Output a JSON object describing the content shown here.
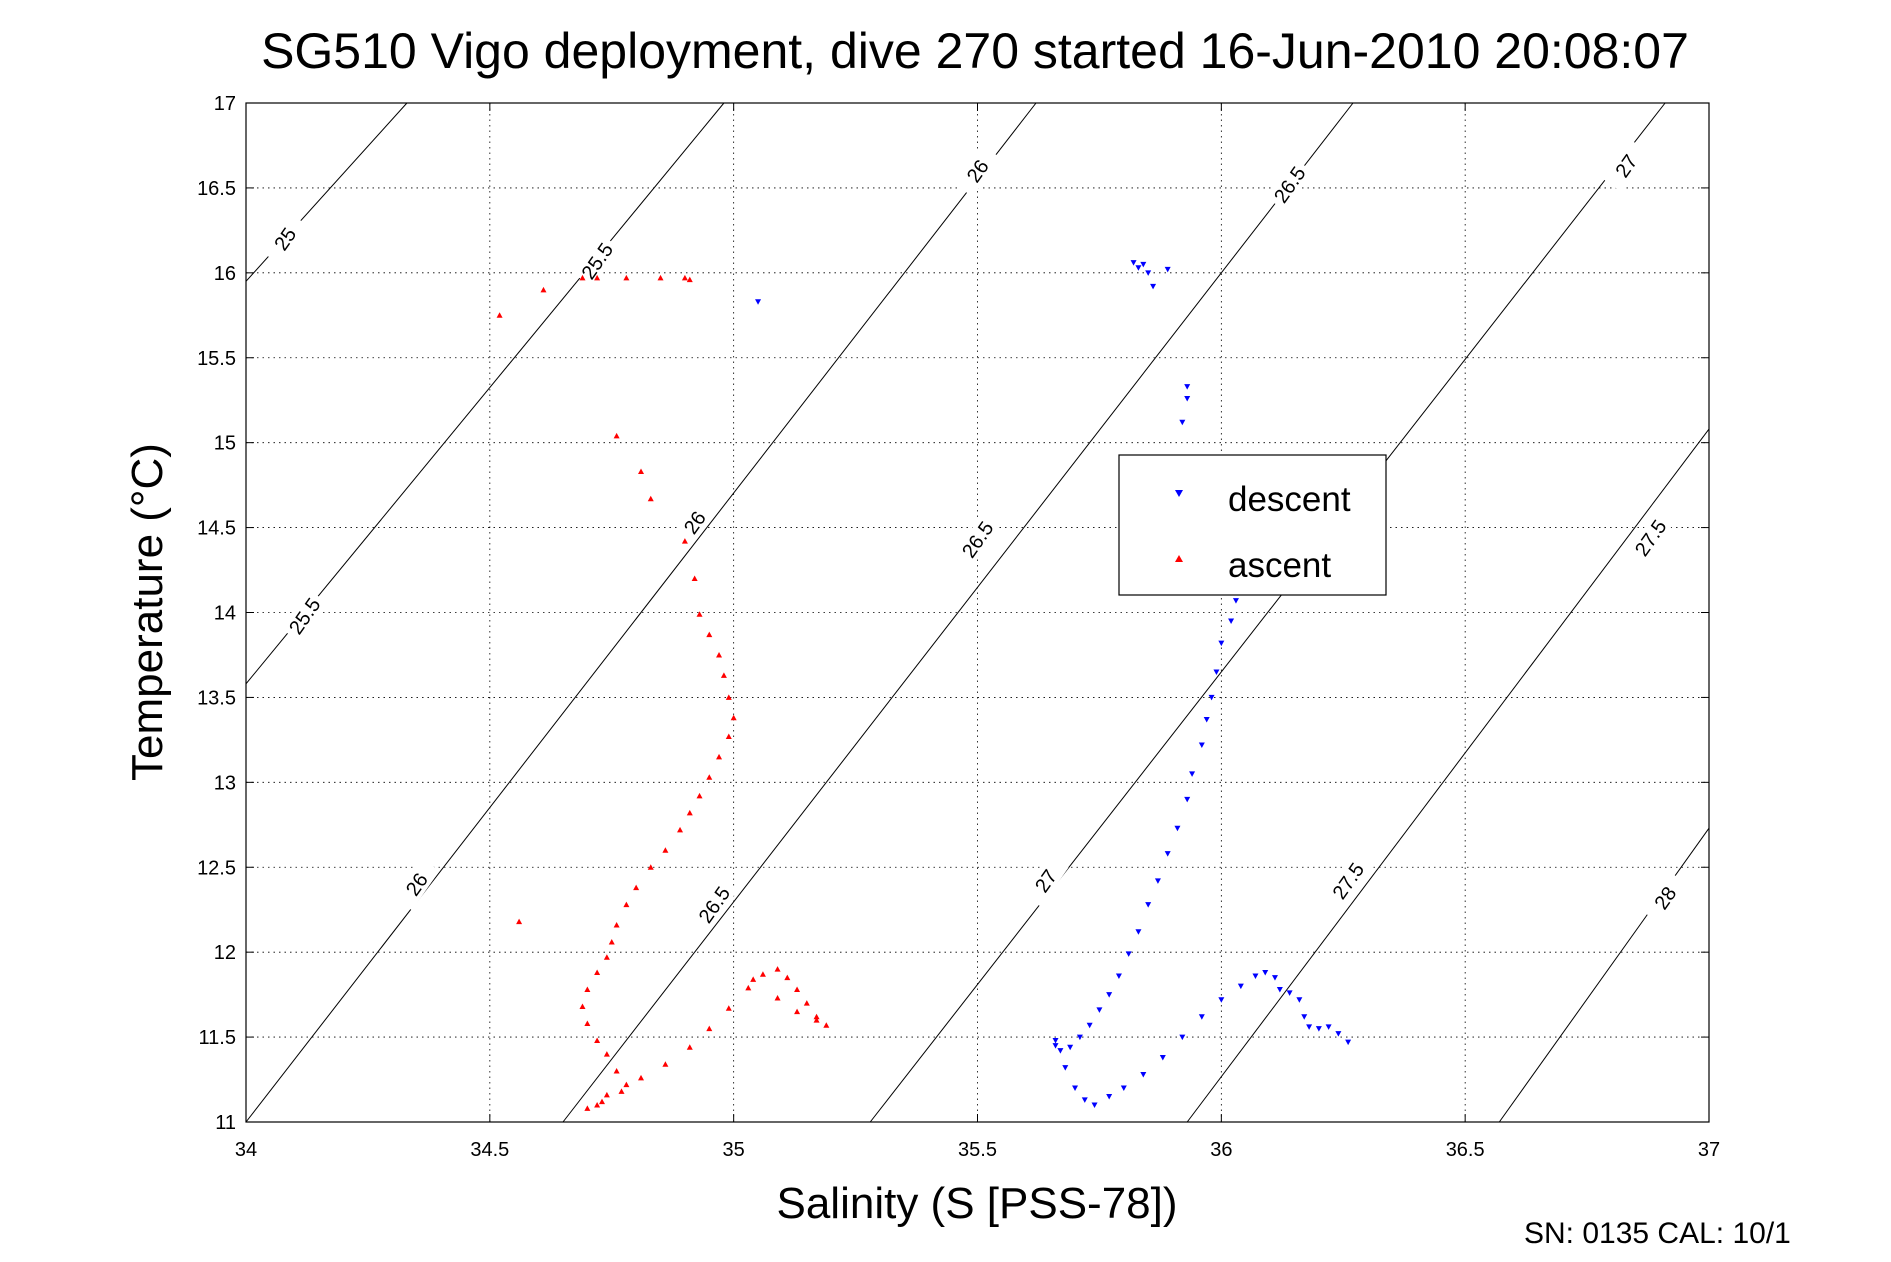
{
  "chart_data": {
    "type": "scatter",
    "title": "SG510 Vigo deployment, dive 270 started 16-Jun-2010 20:08:07",
    "xlabel": "Salinity (S [PSS-78])",
    "ylabel": "Temperature (°C)",
    "xlim": [
      34,
      37
    ],
    "ylim": [
      11,
      17
    ],
    "x_ticks": [
      "34",
      "34.5",
      "35",
      "35.5",
      "36",
      "36.5",
      "37"
    ],
    "y_ticks": [
      "11",
      "11.5",
      "12",
      "12.5",
      "13",
      "13.5",
      "14",
      "14.5",
      "15",
      "15.5",
      "16",
      "16.5",
      "17"
    ],
    "grid": true,
    "legend_position": "upper-right-center",
    "footer": "SN: 0135  CAL: 10/1",
    "colors": {
      "descent": "#0000ff",
      "ascent": "#ff0000",
      "contours": "#000000"
    },
    "contours": [
      {
        "label": "25",
        "points": [
          [
            34.0,
            15.95
          ],
          [
            34.33,
            17.0
          ]
        ]
      },
      {
        "label": "25.5",
        "points": [
          [
            34.0,
            13.58
          ],
          [
            34.98,
            17.0
          ]
        ]
      },
      {
        "label": "26",
        "points": [
          [
            34.0,
            11.0
          ],
          [
            35.62,
            17.0
          ]
        ]
      },
      {
        "label": "26.5",
        "points": [
          [
            34.65,
            11.0
          ],
          [
            36.27,
            17.0
          ]
        ]
      },
      {
        "label": "27",
        "points": [
          [
            35.28,
            11.0
          ],
          [
            36.91,
            17.0
          ]
        ]
      },
      {
        "label": "27.5",
        "points": [
          [
            35.93,
            11.0
          ],
          [
            37.0,
            15.08
          ]
        ]
      },
      {
        "label": "28",
        "points": [
          [
            36.57,
            11.0
          ],
          [
            37.0,
            12.73
          ]
        ]
      }
    ],
    "contour_labels": [
      {
        "text": "25",
        "x": 34.08,
        "y": 16.2
      },
      {
        "text": "25.5",
        "x": 34.72,
        "y": 16.07
      },
      {
        "text": "26",
        "x": 35.5,
        "y": 16.6
      },
      {
        "text": "26.5",
        "x": 36.14,
        "y": 16.52
      },
      {
        "text": "27",
        "x": 36.83,
        "y": 16.63
      },
      {
        "text": "25.5",
        "x": 34.12,
        "y": 13.98
      },
      {
        "text": "26",
        "x": 34.92,
        "y": 14.53
      },
      {
        "text": "26.5",
        "x": 35.5,
        "y": 14.43
      },
      {
        "text": "27.5",
        "x": 36.88,
        "y": 14.44
      },
      {
        "text": "26",
        "x": 34.35,
        "y": 12.4
      },
      {
        "text": "26.5",
        "x": 34.96,
        "y": 12.28
      },
      {
        "text": "27",
        "x": 35.64,
        "y": 12.42
      },
      {
        "text": "27.5",
        "x": 36.26,
        "y": 12.42
      },
      {
        "text": "28",
        "x": 36.91,
        "y": 12.32
      }
    ],
    "series": [
      {
        "name": "descent",
        "marker": "triangle-down",
        "x": [
          35.84,
          35.83,
          35.82,
          35.85,
          35.86,
          35.89,
          35.05,
          35.93,
          35.93,
          35.92,
          36.03,
          36.02,
          36.0,
          35.99,
          35.98,
          35.97,
          35.96,
          35.94,
          35.93,
          35.91,
          35.89,
          35.87,
          35.85,
          35.83,
          35.81,
          35.79,
          35.77,
          35.75,
          35.73,
          35.71,
          35.69,
          35.67,
          35.66,
          35.66,
          35.68,
          35.7,
          35.72,
          35.74,
          35.77,
          35.8,
          35.84,
          35.88,
          35.92,
          35.96,
          36.0,
          36.04,
          36.07,
          36.09,
          36.11,
          36.12,
          36.14,
          36.16,
          36.17,
          36.18,
          36.2,
          36.22,
          36.24,
          36.26
        ],
        "y": [
          16.05,
          16.03,
          16.06,
          16.0,
          15.92,
          16.02,
          15.83,
          15.33,
          15.26,
          15.12,
          14.07,
          13.95,
          13.82,
          13.65,
          13.5,
          13.37,
          13.22,
          13.05,
          12.9,
          12.73,
          12.58,
          12.42,
          12.28,
          12.12,
          11.99,
          11.86,
          11.75,
          11.66,
          11.57,
          11.5,
          11.44,
          11.42,
          11.45,
          11.48,
          11.32,
          11.2,
          11.13,
          11.1,
          11.15,
          11.2,
          11.28,
          11.38,
          11.5,
          11.62,
          11.72,
          11.8,
          11.86,
          11.88,
          11.85,
          11.78,
          11.76,
          11.72,
          11.62,
          11.56,
          11.55,
          11.56,
          11.52,
          11.47
        ]
      },
      {
        "name": "ascent",
        "marker": "triangle-up",
        "x": [
          34.52,
          34.61,
          34.69,
          34.72,
          34.78,
          34.85,
          34.9,
          34.91,
          34.76,
          34.81,
          34.83,
          34.9,
          34.92,
          34.93,
          34.95,
          34.97,
          34.98,
          34.99,
          35.0,
          34.99,
          34.97,
          34.95,
          34.93,
          34.91,
          34.89,
          34.86,
          34.83,
          34.8,
          34.78,
          34.76,
          34.75,
          34.74,
          34.72,
          34.7,
          34.69,
          34.7,
          34.72,
          34.74,
          34.76,
          34.78,
          34.74,
          34.72,
          34.7,
          34.73,
          34.77,
          34.81,
          34.86,
          34.91,
          34.95,
          34.99,
          35.03,
          35.06,
          35.09,
          35.11,
          35.13,
          35.15,
          35.17,
          35.19,
          35.17,
          35.13,
          35.09,
          35.04,
          34.56
        ],
        "y": [
          15.75,
          15.9,
          15.97,
          15.97,
          15.97,
          15.97,
          15.97,
          15.96,
          15.04,
          14.83,
          14.67,
          14.42,
          14.2,
          13.99,
          13.87,
          13.75,
          13.63,
          13.5,
          13.38,
          13.27,
          13.15,
          13.03,
          12.92,
          12.82,
          12.72,
          12.6,
          12.5,
          12.38,
          12.28,
          12.16,
          12.06,
          11.97,
          11.88,
          11.78,
          11.68,
          11.58,
          11.48,
          11.4,
          11.3,
          11.22,
          11.16,
          11.1,
          11.08,
          11.12,
          11.18,
          11.26,
          11.34,
          11.44,
          11.55,
          11.67,
          11.79,
          11.87,
          11.9,
          11.85,
          11.78,
          11.7,
          11.62,
          11.57,
          11.6,
          11.65,
          11.73,
          11.84,
          12.18
        ]
      }
    ]
  }
}
